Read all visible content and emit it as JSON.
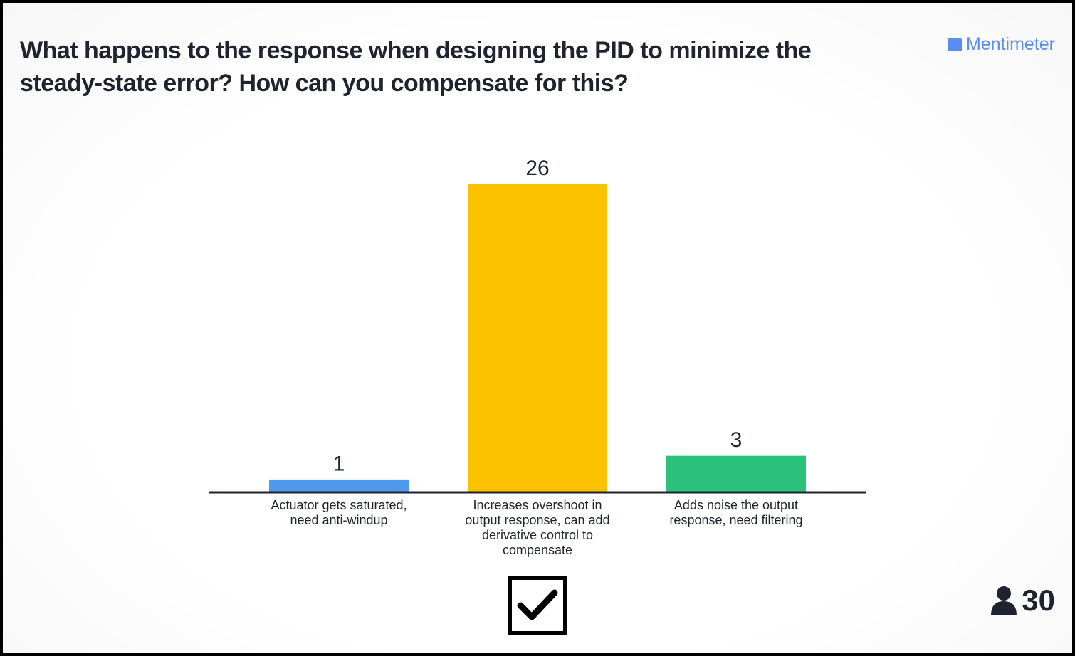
{
  "title": "What happens to the response when designing the PID to minimize the steady-state error? How can you compensate for this?",
  "brand": "Mentimeter",
  "participants": 30,
  "chart_data": {
    "type": "bar",
    "categories": [
      "Actuator gets saturated, need anti-windup",
      "Increases overshoot in output response, can add derivative control to compensate",
      "Adds noise the output response, need filtering"
    ],
    "values": [
      1,
      26,
      3
    ],
    "colors": [
      "#5198ef",
      "#fcc200",
      "#2bc27b"
    ],
    "correct_category": 1
  }
}
